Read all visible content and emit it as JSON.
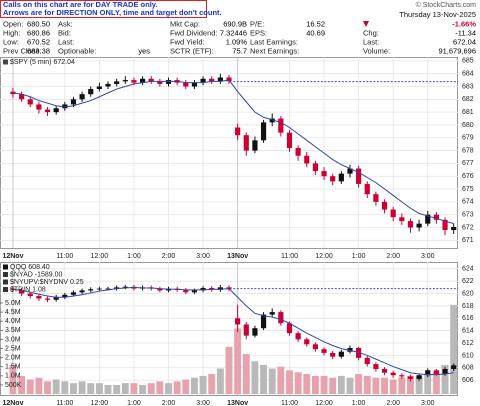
{
  "note": [
    "Calls on this chart are for DAY TRADE only.",
    "Arrows are for DIRECTION ONLY, time and target don't count."
  ],
  "watermark": "© StockCharts.com",
  "info": {
    "date": "Thursday  13-Nov-2025",
    "change_pct": "-1.66%",
    "columns": [
      [
        [
          "Open:",
          "680.50"
        ],
        [
          "High:",
          "680.86"
        ],
        [
          "Low:",
          "670.52"
        ],
        [
          "Prev Close:",
          "683.38"
        ]
      ],
      [
        [
          "Ask:"
        ],
        [
          "Bid:"
        ],
        [
          "Last:"
        ],
        [
          "Optionable:",
          "yes"
        ]
      ],
      [
        [
          "Mkt Cap:",
          "690.9B"
        ],
        [
          "Fwd Dividend:",
          "7.32446"
        ],
        [
          "Fwd Yield:",
          "1.09%"
        ],
        [
          "SCTR (ETF):",
          "75.7"
        ]
      ],
      [
        [
          "P/E:",
          "16.52"
        ],
        [
          "EPS:",
          "40.69"
        ],
        [
          "Last Earnings:"
        ],
        [
          "Next Earnings:"
        ]
      ],
      [
        [
          "Chg:",
          "-11.34"
        ],
        [
          "Last:",
          "672.04"
        ],
        [
          "Volume:",
          "91,679,696"
        ]
      ]
    ]
  },
  "chart_data": [
    {
      "type": "candlestick",
      "legend": [
        {
          "text": "$SPY (5 min) 672.04",
          "color": "#444"
        }
      ],
      "xlim": [
        -1.5,
        51.5
      ],
      "xticks": [
        {
          "value": 0,
          "label": "12Nov"
        },
        {
          "value": 6,
          "label": "11:00"
        },
        {
          "value": 10,
          "label": "12:00"
        },
        {
          "value": 14,
          "label": "1:00"
        },
        {
          "value": 18,
          "label": "2:00"
        },
        {
          "value": 22,
          "label": "3:00"
        },
        {
          "value": 26,
          "label": "13Nov"
        },
        {
          "value": 32,
          "label": "11:00"
        },
        {
          "value": 36,
          "label": "12:00"
        },
        {
          "value": 40,
          "label": "1:00"
        },
        {
          "value": 44,
          "label": "2:00"
        },
        {
          "value": 48,
          "label": "3:00"
        }
      ],
      "ylim": [
        670.4,
        685.3
      ],
      "yticks": [
        671,
        672,
        673,
        674,
        675,
        676,
        677,
        678,
        679,
        680,
        681,
        682,
        683,
        684,
        685
      ],
      "up_color": "#111111",
      "down_color": "#cc0033",
      "ma_color": "#3344aa",
      "ref_color": "#5544cc",
      "ref_line": 683.38,
      "open": [
        682.6,
        682.4,
        682.0,
        681.6,
        681.2,
        681.0,
        681.3,
        681.6,
        682.0,
        682.4,
        682.8,
        683.0,
        683.2,
        683.4,
        683.5,
        683.3,
        683.6,
        683.4,
        683.2,
        683.5,
        683.3,
        683.0,
        683.3,
        683.6,
        683.4,
        683.7,
        679.8,
        679.2,
        678.0,
        678.8,
        680.2,
        680.5,
        679.4,
        678.2,
        677.6,
        677.0,
        676.4,
        676.0,
        675.6,
        676.2,
        676.6,
        675.4,
        674.6,
        674.0,
        673.4,
        672.8,
        672.5,
        672.0,
        672.3,
        673.0,
        672.6,
        671.8
      ],
      "high": [
        682.9,
        682.6,
        682.2,
        681.8,
        681.4,
        681.5,
        681.8,
        682.2,
        682.6,
        683.0,
        683.3,
        683.4,
        683.6,
        683.8,
        683.7,
        683.8,
        683.8,
        683.6,
        683.7,
        683.7,
        683.5,
        683.5,
        683.8,
        683.8,
        684.0,
        683.9,
        680.1,
        679.4,
        679.1,
        680.4,
        680.9,
        680.7,
        679.6,
        678.4,
        677.9,
        677.2,
        676.7,
        676.2,
        676.4,
        676.9,
        676.8,
        675.6,
        674.8,
        674.2,
        673.6,
        673.1,
        672.7,
        672.6,
        673.3,
        673.2,
        672.8,
        672.3
      ],
      "low": [
        682.1,
        681.8,
        681.4,
        680.9,
        680.7,
        680.8,
        681.1,
        681.4,
        681.8,
        682.2,
        682.6,
        682.8,
        683.0,
        683.2,
        683.1,
        683.1,
        683.2,
        683.0,
        683.0,
        683.1,
        682.8,
        682.8,
        683.1,
        683.2,
        683.2,
        683.2,
        678.8,
        677.6,
        677.8,
        678.6,
        679.9,
        679.1,
        677.9,
        677.2,
        676.7,
        676.1,
        675.7,
        675.3,
        675.4,
        675.9,
        675.1,
        674.3,
        673.7,
        673.1,
        672.5,
        672.2,
        671.6,
        671.7,
        672.1,
        672.3,
        671.4,
        671.5
      ],
      "close": [
        682.4,
        682.0,
        681.6,
        681.2,
        681.0,
        681.3,
        681.6,
        682.0,
        682.4,
        682.8,
        683.0,
        683.2,
        683.4,
        683.5,
        683.3,
        683.6,
        683.4,
        683.2,
        683.5,
        683.3,
        683.0,
        683.3,
        683.6,
        683.4,
        683.7,
        683.4,
        679.2,
        678.0,
        678.8,
        680.2,
        680.5,
        679.4,
        678.2,
        677.6,
        677.0,
        676.4,
        676.0,
        675.6,
        676.2,
        676.6,
        675.4,
        674.6,
        674.0,
        673.4,
        672.8,
        672.5,
        672.0,
        672.3,
        673.0,
        672.6,
        671.8,
        672.04
      ],
      "ma": [
        682.5,
        682.4,
        682.2,
        681.9,
        681.7,
        681.5,
        681.4,
        681.5,
        681.7,
        681.9,
        682.2,
        682.5,
        682.8,
        683.0,
        683.2,
        683.3,
        683.4,
        683.4,
        683.4,
        683.4,
        683.3,
        683.3,
        683.3,
        683.4,
        683.4,
        683.5,
        682.6,
        681.8,
        681.0,
        680.6,
        680.4,
        680.2,
        679.8,
        679.3,
        678.8,
        678.3,
        677.8,
        677.3,
        676.9,
        676.6,
        676.3,
        675.9,
        675.5,
        675.0,
        674.5,
        674.0,
        673.5,
        673.1,
        672.9,
        672.7,
        672.5,
        672.3
      ]
    },
    {
      "type": "candlestick",
      "legend": [
        {
          "text": "QQQ 608.40",
          "color": "#111"
        },
        {
          "text": "$NYAD -1589.00",
          "color": "#333"
        },
        {
          "text": "$NYUPV:$NYDNV 0.25",
          "color": "#333"
        },
        {
          "text": "$TRIN 1.08",
          "color": "#333"
        }
      ],
      "xlim": [
        -1.5,
        51.5
      ],
      "xticks": [
        {
          "value": 0,
          "label": "12Nov"
        },
        {
          "value": 6,
          "label": "11:00"
        },
        {
          "value": 10,
          "label": "12:00"
        },
        {
          "value": 14,
          "label": "1:00"
        },
        {
          "value": 18,
          "label": "2:00"
        },
        {
          "value": 22,
          "label": "3:00"
        },
        {
          "value": 26,
          "label": "13Nov"
        },
        {
          "value": 32,
          "label": "11:00"
        },
        {
          "value": 36,
          "label": "12:00"
        },
        {
          "value": 40,
          "label": "1:00"
        },
        {
          "value": 44,
          "label": "2:00"
        },
        {
          "value": 48,
          "label": "3:00"
        }
      ],
      "ylim": [
        603.6,
        625.1
      ],
      "yticks": [
        606,
        608,
        610,
        612,
        614,
        616,
        618,
        620,
        622,
        624
      ],
      "up_color": "#111111",
      "down_color": "#cc0033",
      "ma_color": "#3344aa",
      "ref_color": "#5544cc",
      "ref_line": 620.8,
      "open": [
        620.8,
        620.6,
        620.0,
        619.6,
        619.2,
        619.0,
        619.4,
        619.8,
        620.2,
        620.5,
        620.7,
        620.8,
        620.8,
        621.0,
        621.1,
        620.8,
        621.0,
        620.8,
        620.5,
        620.8,
        620.6,
        620.2,
        620.5,
        620.9,
        620.6,
        621.0,
        616.0,
        615.0,
        613.2,
        614.4,
        616.6,
        617.0,
        615.2,
        613.6,
        612.6,
        611.8,
        611.0,
        610.4,
        609.8,
        610.6,
        611.2,
        609.6,
        608.6,
        607.8,
        607.2,
        606.8,
        606.6,
        606.2,
        606.8,
        607.6,
        607.0,
        607.8
      ],
      "high": [
        621.2,
        620.9,
        620.3,
        619.9,
        619.5,
        619.8,
        620.1,
        620.5,
        620.8,
        621.0,
        621.1,
        621.1,
        621.3,
        621.4,
        621.4,
        621.3,
        621.3,
        621.1,
        621.1,
        621.1,
        620.9,
        620.8,
        621.2,
        621.2,
        621.4,
        621.3,
        618.2,
        615.4,
        614.8,
        617.0,
        617.6,
        617.3,
        615.5,
        613.9,
        612.9,
        612.1,
        611.3,
        610.7,
        610.9,
        611.6,
        611.4,
        609.9,
        608.9,
        608.1,
        607.5,
        607.1,
        606.9,
        607.1,
        607.9,
        607.8,
        608.1,
        608.7
      ],
      "low": [
        620.2,
        619.6,
        619.2,
        618.8,
        618.6,
        618.7,
        619.1,
        619.5,
        619.9,
        620.2,
        620.4,
        620.5,
        620.5,
        620.7,
        620.5,
        620.5,
        620.5,
        620.2,
        620.2,
        620.3,
        619.9,
        619.9,
        620.2,
        620.3,
        620.3,
        620.4,
        613.8,
        612.6,
        612.9,
        614.1,
        616.2,
        614.8,
        613.2,
        612.2,
        611.4,
        610.6,
        610.0,
        609.4,
        609.5,
        610.3,
        609.2,
        608.2,
        607.4,
        606.8,
        606.4,
        606.2,
        605.8,
        605.9,
        606.5,
        606.7,
        606.7,
        607.5
      ],
      "close": [
        620.6,
        620.0,
        619.6,
        619.2,
        619.0,
        619.4,
        619.8,
        620.2,
        620.5,
        620.7,
        620.8,
        620.8,
        621.0,
        621.1,
        620.8,
        621.0,
        620.8,
        620.5,
        620.8,
        620.6,
        620.2,
        620.5,
        620.9,
        620.6,
        621.0,
        620.7,
        615.0,
        613.2,
        614.4,
        616.6,
        617.0,
        615.2,
        613.6,
        612.6,
        611.8,
        611.0,
        610.4,
        609.8,
        610.6,
        611.2,
        609.6,
        608.6,
        607.8,
        607.2,
        606.8,
        606.6,
        606.2,
        606.8,
        607.6,
        607.0,
        607.8,
        608.4
      ],
      "ma": [
        620.7,
        620.5,
        620.2,
        619.9,
        619.6,
        619.4,
        619.4,
        619.6,
        619.8,
        620.1,
        620.4,
        620.6,
        620.8,
        620.9,
        621.0,
        620.9,
        620.9,
        620.8,
        620.7,
        620.7,
        620.6,
        620.6,
        620.6,
        620.7,
        620.7,
        620.8,
        619.4,
        618.0,
        616.8,
        616.4,
        616.2,
        615.8,
        615.2,
        614.4,
        613.6,
        612.9,
        612.2,
        611.6,
        611.1,
        610.8,
        610.5,
        610.0,
        609.4,
        608.8,
        608.2,
        607.7,
        607.2,
        607.0,
        606.9,
        606.9,
        607.0,
        607.2
      ],
      "volume": {
        "ylim": [
          -0.05,
          7.25
        ],
        "yticks": [
          {
            "value": 5.0,
            "label": "5.0M"
          },
          {
            "value": 4.5,
            "label": "4.5M"
          },
          {
            "value": 4.0,
            "label": "4.0M"
          },
          {
            "value": 3.5,
            "label": "3.5M"
          },
          {
            "value": 3.0,
            "label": "3.0M"
          },
          {
            "value": 2.5,
            "label": "2.5M"
          },
          {
            "value": 2.0,
            "label": "2.0M"
          },
          {
            "value": 1.5,
            "label": "1.5M"
          },
          {
            "value": 1.0,
            "label": "1.0M"
          },
          {
            "value": 0.5,
            "label": "500K"
          }
        ],
        "up_color": "#b9b9b9",
        "down_color": "#e6a3ad",
        "values": [
          1.6,
          1.0,
          0.8,
          0.9,
          0.7,
          0.8,
          0.7,
          0.6,
          0.7,
          0.6,
          0.6,
          0.5,
          0.5,
          0.6,
          0.6,
          0.5,
          0.6,
          0.7,
          0.6,
          0.7,
          0.8,
          0.9,
          1.0,
          1.1,
          1.4,
          2.6,
          3.6,
          2.2,
          1.8,
          1.6,
          1.4,
          1.5,
          1.3,
          1.2,
          1.1,
          1.0,
          1.0,
          0.9,
          1.0,
          0.9,
          1.1,
          1.0,
          0.9,
          0.9,
          0.8,
          0.9,
          1.0,
          1.0,
          1.1,
          1.2,
          1.6,
          4.9
        ]
      }
    }
  ]
}
